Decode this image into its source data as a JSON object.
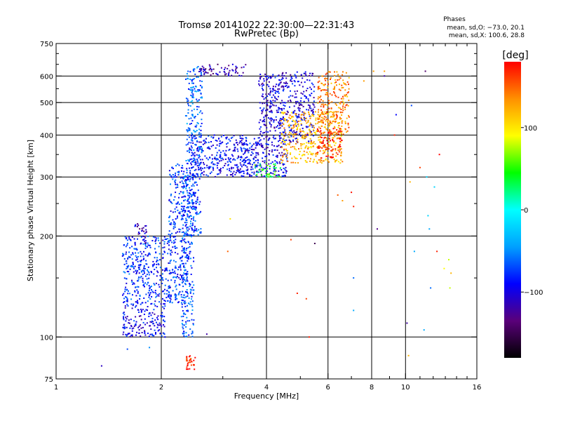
{
  "chart_data": {
    "type": "scatter",
    "title": "Tromsø 20141022 22:30:00—22:31:43",
    "subtitle": "RwPretec (Bp)",
    "xlabel": "Frequency [MHz]",
    "ylabel": "Stationary phase Virtual Height [km]",
    "x_scale": "log2",
    "y_scale": "log",
    "xlim": [
      1,
      16
    ],
    "ylim": [
      75,
      750
    ],
    "x_ticks": [
      1,
      2,
      4,
      6,
      8,
      10,
      16
    ],
    "x_tick_labels": [
      "1",
      "2",
      "4",
      "6",
      "8",
      "10",
      "16"
    ],
    "y_ticks": [
      75,
      100,
      200,
      300,
      400,
      500,
      600,
      750
    ],
    "y_tick_labels": [
      "75",
      "100",
      "200",
      "300",
      "400",
      "500",
      "600",
      "750"
    ],
    "x_gridlines": [
      2,
      4,
      6,
      8,
      10
    ],
    "y_gridlines": [
      100,
      200,
      300,
      400,
      500,
      600
    ],
    "grid": true,
    "legend": {
      "title": "Phases",
      "lines": [
        "mean, sd,O: −73.0, 20.1",
        "mean, sd,X: 100.6, 28.8"
      ],
      "placement": "top-right"
    },
    "colorbar": {
      "title": "[deg]",
      "range": [
        -180,
        180
      ],
      "ticks": [
        100,
        0,
        -100
      ],
      "tick_labels": [
        "100",
        "0",
        "−100"
      ]
    },
    "colormap": [
      "#000000",
      "#5a007a",
      "#0000ff",
      "#00a0ff",
      "#00ffff",
      "#00ff00",
      "#ffff00",
      "#ff9000",
      "#ff0000"
    ],
    "clusters": [
      {
        "name": "e-low-trace",
        "phase": -95,
        "x": [
          1.55,
          2.05
        ],
        "y": [
          100,
          125
        ]
      },
      {
        "name": "f1-lower",
        "phase": -80,
        "x": [
          1.55,
          2.4
        ],
        "y": [
          125,
          200
        ]
      },
      {
        "name": "f1-spike",
        "phase": -110,
        "x": [
          1.68,
          1.82
        ],
        "y": [
          190,
          220
        ]
      },
      {
        "name": "f1-upper",
        "phase": -75,
        "x": [
          2.1,
          2.6
        ],
        "y": [
          200,
          330
        ]
      },
      {
        "name": "vertical-lower",
        "phase": -70,
        "x": [
          2.28,
          2.48
        ],
        "y": [
          100,
          300
        ]
      },
      {
        "name": "f-band-main",
        "phase": -90,
        "x": [
          2.4,
          3.8
        ],
        "y": [
          300,
          400
        ]
      },
      {
        "name": "vertical-upper",
        "phase": -60,
        "x": [
          2.35,
          2.62
        ],
        "y": [
          330,
          640
        ]
      },
      {
        "name": "top-band",
        "phase": -120,
        "x": [
          2.55,
          3.5
        ],
        "y": [
          600,
          650
        ]
      },
      {
        "name": "f2-o-trace",
        "phase": -95,
        "x": [
          3.3,
          4.6
        ],
        "y": [
          300,
          380
        ]
      },
      {
        "name": "f2-curve",
        "phase": -100,
        "x": [
          3.8,
          5.5
        ],
        "y": [
          380,
          620
        ]
      },
      {
        "name": "f2-x-trace",
        "phase": 120,
        "x": [
          4.4,
          6.6
        ],
        "y": [
          330,
          470
        ]
      },
      {
        "name": "x-upper",
        "phase": 140,
        "x": [
          5.6,
          6.9
        ],
        "y": [
          400,
          620
        ]
      },
      {
        "name": "green-patch",
        "phase": 40,
        "x": [
          3.7,
          4.4
        ],
        "y": [
          300,
          330
        ]
      },
      {
        "name": "red-patch",
        "phase": 170,
        "x": [
          5.6,
          6.6
        ],
        "y": [
          340,
          420
        ]
      },
      {
        "name": "e-low-red",
        "phase": 175,
        "x": [
          2.35,
          2.5
        ],
        "y": [
          80,
          88
        ]
      }
    ],
    "sparse_points": [
      {
        "x": 1.35,
        "y": 82,
        "phase": -110
      },
      {
        "x": 1.6,
        "y": 92,
        "phase": -70
      },
      {
        "x": 1.85,
        "y": 93,
        "phase": -50
      },
      {
        "x": 2.05,
        "y": 100,
        "phase": -90
      },
      {
        "x": 2.7,
        "y": 102,
        "phase": -120
      },
      {
        "x": 3.15,
        "y": 225,
        "phase": 100
      },
      {
        "x": 3.1,
        "y": 180,
        "phase": 150
      },
      {
        "x": 4.7,
        "y": 195,
        "phase": 160
      },
      {
        "x": 4.9,
        "y": 135,
        "phase": 170
      },
      {
        "x": 5.2,
        "y": 130,
        "phase": 160
      },
      {
        "x": 5.5,
        "y": 190,
        "phase": -150
      },
      {
        "x": 5.3,
        "y": 100,
        "phase": 170
      },
      {
        "x": 6.4,
        "y": 265,
        "phase": 150
      },
      {
        "x": 6.6,
        "y": 255,
        "phase": 130
      },
      {
        "x": 7.0,
        "y": 270,
        "phase": 175
      },
      {
        "x": 7.1,
        "y": 245,
        "phase": 170
      },
      {
        "x": 7.1,
        "y": 150,
        "phase": -60
      },
      {
        "x": 7.1,
        "y": 120,
        "phase": -40
      },
      {
        "x": 7.6,
        "y": 580,
        "phase": 130
      },
      {
        "x": 8.1,
        "y": 620,
        "phase": 130
      },
      {
        "x": 8.3,
        "y": 210,
        "phase": -130
      },
      {
        "x": 8.7,
        "y": 600,
        "phase": -120
      },
      {
        "x": 8.7,
        "y": 620,
        "phase": 130
      },
      {
        "x": 9.3,
        "y": 400,
        "phase": 170
      },
      {
        "x": 9.4,
        "y": 460,
        "phase": -90
      },
      {
        "x": 10.1,
        "y": 110,
        "phase": -120
      },
      {
        "x": 10.2,
        "y": 88,
        "phase": 120
      },
      {
        "x": 10.3,
        "y": 290,
        "phase": 120
      },
      {
        "x": 10.4,
        "y": 490,
        "phase": -70
      },
      {
        "x": 10.6,
        "y": 180,
        "phase": -40
      },
      {
        "x": 11.0,
        "y": 320,
        "phase": 160
      },
      {
        "x": 11.3,
        "y": 105,
        "phase": -40
      },
      {
        "x": 11.4,
        "y": 620,
        "phase": -140
      },
      {
        "x": 11.5,
        "y": 300,
        "phase": -20
      },
      {
        "x": 11.6,
        "y": 230,
        "phase": -20
      },
      {
        "x": 11.7,
        "y": 210,
        "phase": -40
      },
      {
        "x": 11.8,
        "y": 140,
        "phase": -60
      },
      {
        "x": 12.1,
        "y": 280,
        "phase": -20
      },
      {
        "x": 12.3,
        "y": 180,
        "phase": 170
      },
      {
        "x": 12.5,
        "y": 350,
        "phase": 180
      },
      {
        "x": 12.9,
        "y": 160,
        "phase": 90
      },
      {
        "x": 13.3,
        "y": 170,
        "phase": 80
      },
      {
        "x": 13.4,
        "y": 140,
        "phase": 80
      },
      {
        "x": 13.5,
        "y": 155,
        "phase": 120
      }
    ]
  }
}
